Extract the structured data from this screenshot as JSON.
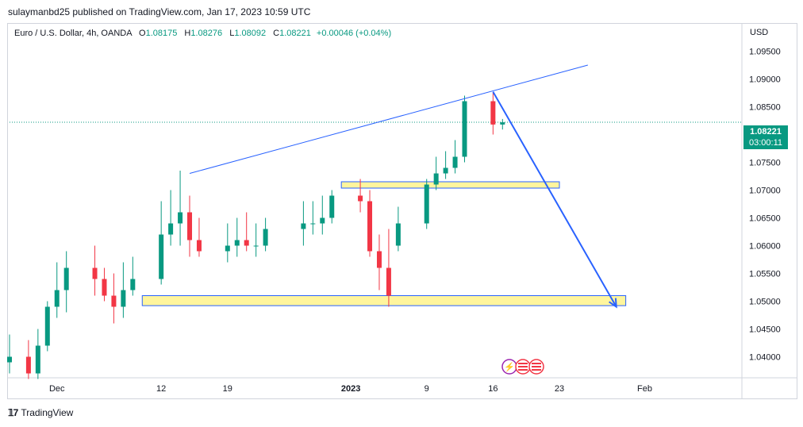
{
  "header": {
    "publisher": "sulaymanbd25 published on TradingView.com, Jan 17, 2023 10:59 UTC"
  },
  "legend": {
    "symbol": "Euro / U.S. Dollar, 4h, OANDA",
    "o_label": "O",
    "o": "1.08175",
    "h_label": "H",
    "h": "1.08276",
    "l_label": "L",
    "l": "1.08092",
    "c_label": "C",
    "c": "1.08221",
    "change": "+0.00046 (+0.04%)"
  },
  "axis": {
    "currency": "USD"
  },
  "price_tag": {
    "price": "1.08221",
    "countdown": "03:00:11"
  },
  "footer": {
    "brand": "TradingView"
  },
  "colors": {
    "up": "#089981",
    "down": "#f23645",
    "trendline": "#2962ff",
    "zone_fill": "#fff59d",
    "zone_border": "#2962ff"
  },
  "chart_data": {
    "type": "candlestick",
    "y_ticks": [
      "1.09500",
      "1.09000",
      "1.08500",
      "1.08000",
      "1.07500",
      "1.07000",
      "1.06500",
      "1.06000",
      "1.05500",
      "1.05000",
      "1.04500",
      "1.04000"
    ],
    "x_ticks": [
      {
        "label": "Dec",
        "date": "2022-12-01"
      },
      {
        "label": "12",
        "date": "2022-12-12"
      },
      {
        "label": "19",
        "date": "2022-12-19"
      },
      {
        "label": "2023",
        "date": "2023-01-01",
        "bold": true
      },
      {
        "label": "9",
        "date": "2023-01-09"
      },
      {
        "label": "16",
        "date": "2023-01-16"
      },
      {
        "label": "23",
        "date": "2023-01-23"
      },
      {
        "label": "Feb",
        "date": "2023-02-01"
      }
    ],
    "ylim": [
      1.0365,
      1.0985
    ],
    "xlim": [
      "2022-11-26",
      "2023-02-11"
    ],
    "current_price": 1.08221,
    "series": [
      {
        "name": "EUR/USD 4h",
        "x": [
          "2022-11-26",
          "2022-11-28",
          "2022-11-29",
          "2022-11-30",
          "2022-12-01",
          "2022-12-02",
          "2022-12-05",
          "2022-12-06",
          "2022-12-07",
          "2022-12-08",
          "2022-12-09",
          "2022-12-12",
          "2022-12-13",
          "2022-12-14",
          "2022-12-15",
          "2022-12-16",
          "2022-12-19",
          "2022-12-20",
          "2022-12-21",
          "2022-12-22",
          "2022-12-23",
          "2022-12-27",
          "2022-12-28",
          "2022-12-29",
          "2022-12-30",
          "2023-01-02",
          "2023-01-03",
          "2023-01-04",
          "2023-01-05",
          "2023-01-06",
          "2023-01-09",
          "2023-01-10",
          "2023-01-11",
          "2023-01-12",
          "2023-01-13",
          "2023-01-16",
          "2023-01-17"
        ],
        "open": [
          1.039,
          1.04,
          1.037,
          1.042,
          1.049,
          1.052,
          1.056,
          1.054,
          1.051,
          1.049,
          1.052,
          1.054,
          1.062,
          1.064,
          1.066,
          1.061,
          1.059,
          1.06,
          1.061,
          1.06,
          1.06,
          1.063,
          1.064,
          1.064,
          1.065,
          1.069,
          1.068,
          1.059,
          1.056,
          1.06,
          1.064,
          1.071,
          1.073,
          1.074,
          1.076,
          1.086,
          1.0818
        ],
        "high": [
          1.044,
          1.043,
          1.045,
          1.05,
          1.057,
          1.059,
          1.06,
          1.056,
          1.055,
          1.057,
          1.058,
          1.068,
          1.07,
          1.0735,
          1.069,
          1.065,
          1.064,
          1.065,
          1.066,
          1.064,
          1.065,
          1.068,
          1.068,
          1.069,
          1.07,
          1.072,
          1.07,
          1.062,
          1.063,
          1.067,
          1.072,
          1.076,
          1.077,
          1.079,
          1.087,
          1.0875,
          1.0828
        ],
        "low": [
          1.037,
          1.036,
          1.036,
          1.041,
          1.047,
          1.048,
          1.051,
          1.05,
          1.046,
          1.047,
          1.051,
          1.053,
          1.06,
          1.06,
          1.058,
          1.058,
          1.057,
          1.058,
          1.059,
          1.058,
          1.059,
          1.06,
          1.062,
          1.062,
          1.064,
          1.066,
          1.058,
          1.052,
          1.049,
          1.059,
          1.063,
          1.07,
          1.072,
          1.073,
          1.075,
          1.08,
          1.0809
        ],
        "close": [
          1.04,
          1.037,
          1.042,
          1.049,
          1.052,
          1.056,
          1.054,
          1.051,
          1.049,
          1.052,
          1.054,
          1.062,
          1.064,
          1.066,
          1.061,
          1.059,
          1.06,
          1.061,
          1.06,
          1.06,
          1.063,
          1.064,
          1.064,
          1.065,
          1.069,
          1.068,
          1.059,
          1.056,
          1.051,
          1.064,
          1.071,
          1.073,
          1.074,
          1.076,
          1.086,
          1.0818,
          1.0822
        ]
      }
    ],
    "annotations": [
      {
        "kind": "trendline",
        "from": {
          "date": "2022-12-15",
          "price": 1.073
        },
        "to": {
          "date": "2023-01-26",
          "price": 1.0925
        }
      },
      {
        "kind": "zone",
        "from": {
          "date": "2022-12-31",
          "price": 1.0715
        },
        "to": {
          "date": "2023-01-23",
          "price": 1.0705
        }
      },
      {
        "kind": "zone",
        "from": {
          "date": "2022-12-10",
          "price": 1.051
        },
        "to": {
          "date": "2023-01-30",
          "price": 1.0492
        }
      },
      {
        "kind": "arrow",
        "from": {
          "date": "2023-01-16",
          "price": 1.0877
        },
        "to": {
          "date": "2023-01-29",
          "price": 1.049
        }
      }
    ],
    "grid": false,
    "legend_position": "top-left"
  }
}
